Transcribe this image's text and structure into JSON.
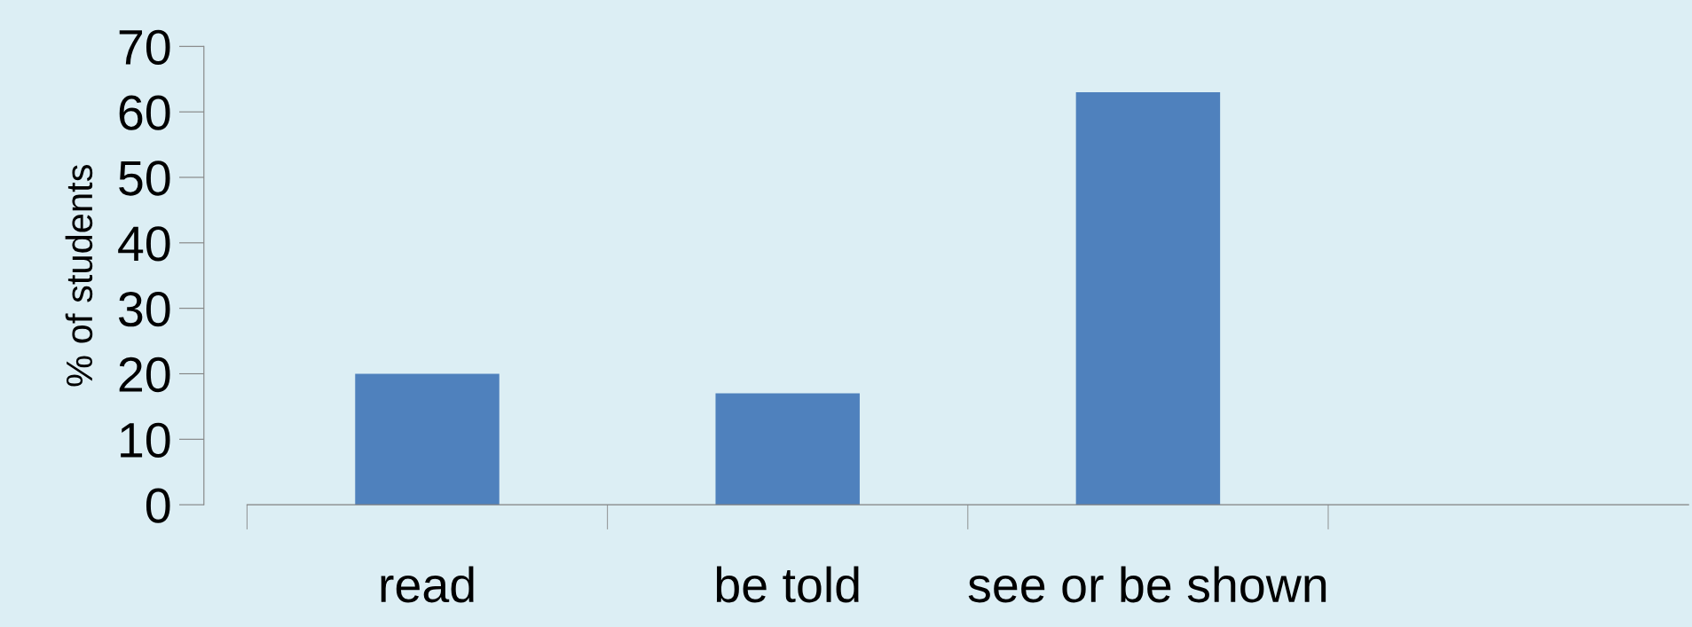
{
  "chart_data": {
    "type": "bar",
    "ylabel": "% of students",
    "categories": [
      "read",
      "be told",
      "see or be shown",
      null
    ],
    "values": [
      20,
      17,
      63,
      null
    ],
    "color": "#4f81bd",
    "ylim": [
      0,
      70
    ],
    "yticks": [
      0,
      10,
      20,
      30,
      40,
      50,
      60,
      70
    ],
    "grid": false,
    "legend": false
  }
}
